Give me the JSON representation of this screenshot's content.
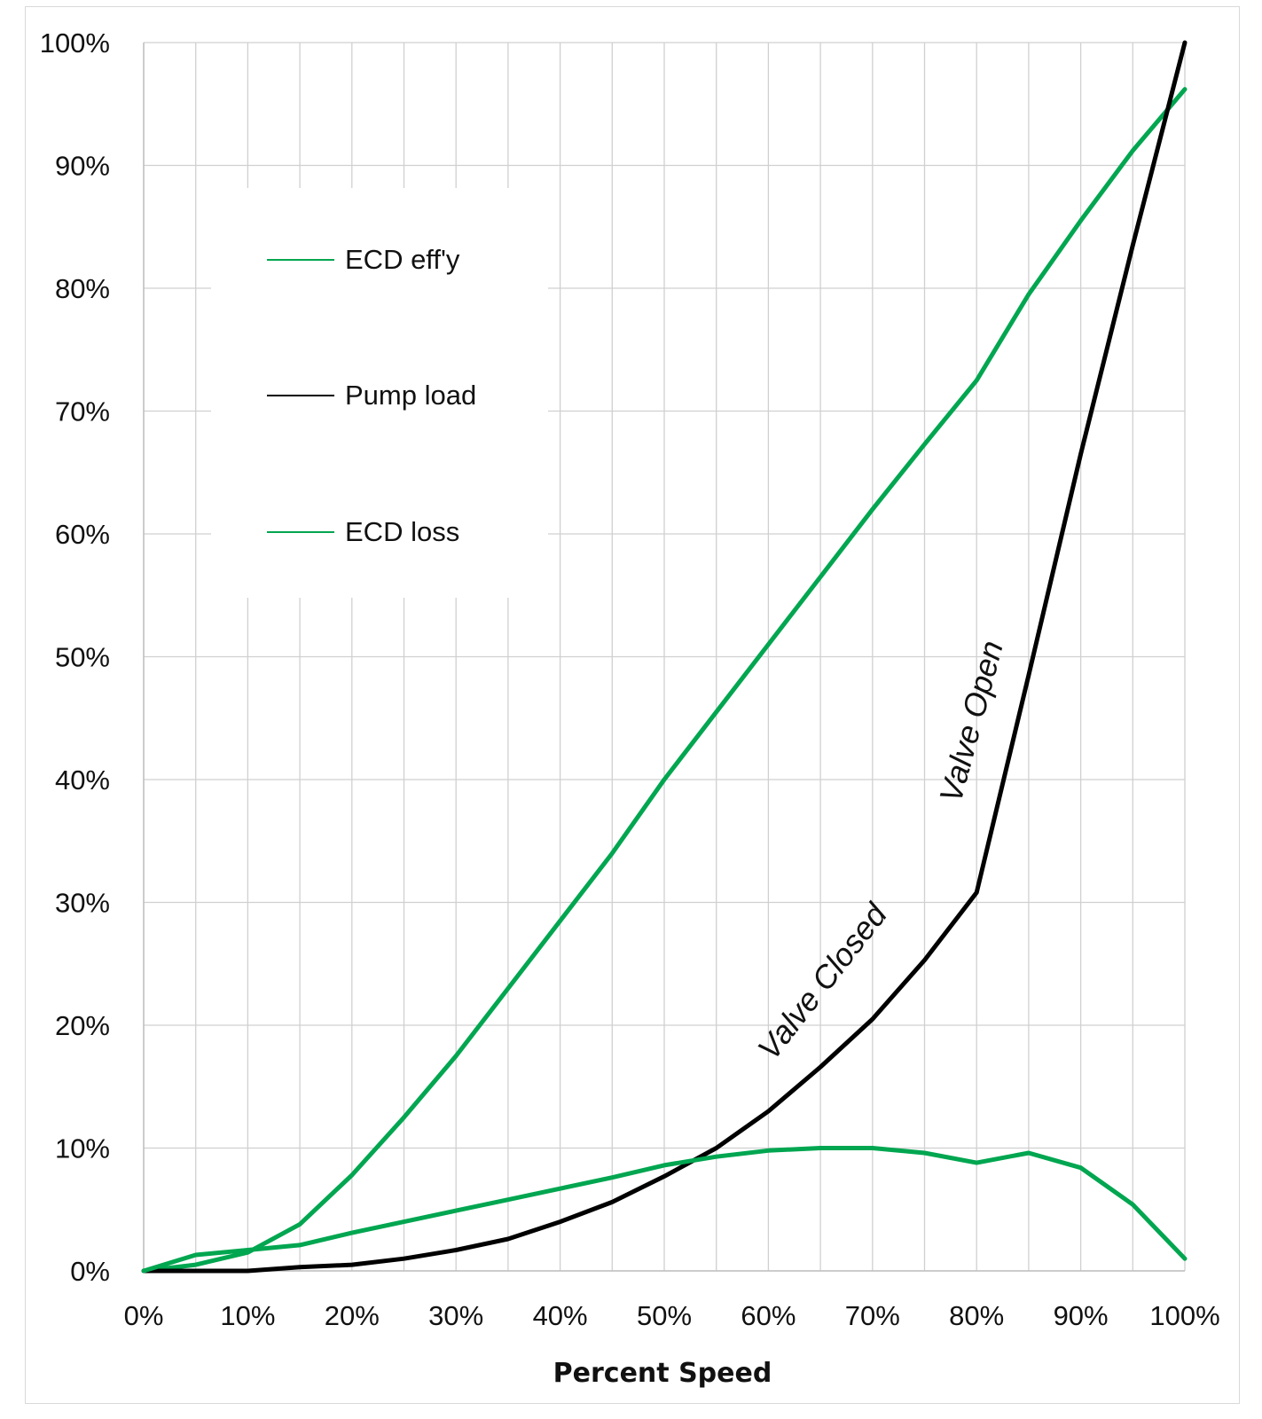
{
  "chart_data": {
    "type": "line",
    "title": "",
    "xlabel": "Percent Speed",
    "ylabel": "",
    "xlim": [
      0,
      100
    ],
    "ylim": [
      0,
      100
    ],
    "x_ticks": [
      "0%",
      "10%",
      "20%",
      "30%",
      "40%",
      "50%",
      "60%",
      "70%",
      "80%",
      "90%",
      "100%"
    ],
    "y_ticks": [
      "0%",
      "10%",
      "20%",
      "30%",
      "40%",
      "50%",
      "60%",
      "70%",
      "80%",
      "90%",
      "100%"
    ],
    "grid": true,
    "legend_placement": "top-left",
    "series": [
      {
        "name": "ECD eff'y",
        "color": "#00a650",
        "x": [
          0,
          5,
          10,
          15,
          20,
          25,
          30,
          35,
          40,
          45,
          50,
          55,
          60,
          65,
          70,
          75,
          80,
          85,
          90,
          95,
          100
        ],
        "y": [
          0,
          0.5,
          1.5,
          3.8,
          7.8,
          12.5,
          17.5,
          23,
          28.5,
          34,
          40,
          45.5,
          51,
          56.5,
          62,
          67.3,
          72.5,
          79.5,
          85.5,
          91.2,
          96.2
        ]
      },
      {
        "name": "Pump load",
        "color": "#000000",
        "x": [
          0,
          5,
          10,
          15,
          20,
          25,
          30,
          35,
          40,
          45,
          50,
          55,
          60,
          65,
          70,
          75,
          80,
          85,
          90,
          95,
          100
        ],
        "y": [
          0,
          0,
          0,
          0.3,
          0.5,
          1,
          1.7,
          2.6,
          4,
          5.6,
          7.7,
          10,
          13,
          16.6,
          20.5,
          25.3,
          30.8,
          48.5,
          66.5,
          83.5,
          100
        ]
      },
      {
        "name": "ECD loss",
        "color": "#00a650",
        "x": [
          0,
          5,
          10,
          15,
          20,
          25,
          30,
          35,
          40,
          45,
          50,
          55,
          60,
          65,
          70,
          75,
          80,
          85,
          90,
          95,
          100
        ],
        "y": [
          0,
          1.3,
          1.7,
          2.1,
          3.1,
          4,
          4.9,
          5.8,
          6.7,
          7.6,
          8.6,
          9.3,
          9.8,
          10,
          10,
          9.6,
          8.8,
          9.6,
          8.4,
          5.4,
          1
        ]
      }
    ],
    "annotations": [
      {
        "text": "Valve Closed",
        "x": 66,
        "y": 23,
        "rotation": -52
      },
      {
        "text": "Valve Open",
        "x": 80.5,
        "y": 44.5,
        "rotation": -75
      }
    ]
  }
}
